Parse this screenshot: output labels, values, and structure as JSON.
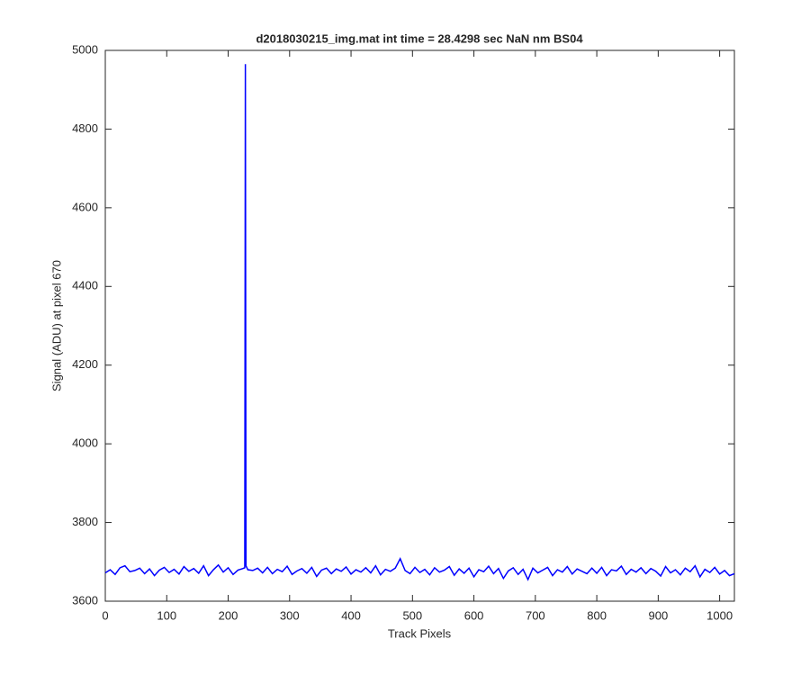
{
  "chart_data": {
    "type": "line",
    "title": "d2018030215_img.mat int time = 28.4298 sec  NaN nm BS04",
    "x_label": "Track Pixels",
    "y_label": "Signal (ADU) at pixel 670",
    "xlim": [
      0,
      1024
    ],
    "xticks": [
      0,
      100,
      200,
      300,
      400,
      500,
      600,
      700,
      800,
      900,
      1000
    ],
    "ylim": [
      3600,
      5000
    ],
    "yticks": [
      3600,
      3800,
      4000,
      4200,
      4400,
      4600,
      4800,
      5000
    ],
    "x": [
      0,
      8,
      16,
      24,
      32,
      40,
      48,
      56,
      64,
      72,
      80,
      88,
      96,
      104,
      112,
      120,
      128,
      136,
      144,
      152,
      160,
      168,
      176,
      184,
      192,
      200,
      208,
      216,
      224,
      227,
      228,
      229,
      232,
      240,
      248,
      256,
      264,
      272,
      280,
      288,
      296,
      304,
      312,
      320,
      328,
      336,
      344,
      352,
      360,
      368,
      376,
      384,
      392,
      400,
      408,
      416,
      424,
      432,
      440,
      448,
      456,
      464,
      472,
      480,
      488,
      496,
      504,
      512,
      520,
      528,
      536,
      544,
      552,
      560,
      568,
      576,
      584,
      592,
      600,
      608,
      616,
      624,
      632,
      640,
      648,
      656,
      664,
      672,
      680,
      688,
      696,
      704,
      712,
      720,
      728,
      736,
      744,
      752,
      760,
      768,
      776,
      784,
      792,
      800,
      808,
      816,
      824,
      832,
      840,
      848,
      856,
      864,
      872,
      880,
      888,
      896,
      904,
      912,
      920,
      928,
      936,
      944,
      952,
      960,
      968,
      976,
      984,
      992,
      1000,
      1008,
      1016,
      1024
    ],
    "series": [
      {
        "color": "#0000ff",
        "values": [
          3672,
          3680,
          3668,
          3685,
          3690,
          3675,
          3678,
          3684,
          3670,
          3682,
          3665,
          3679,
          3686,
          3673,
          3681,
          3669,
          3688,
          3676,
          3683,
          3671,
          3690,
          3665,
          3680,
          3692,
          3674,
          3685,
          3668,
          3679,
          3683,
          3685,
          4965,
          3690,
          3680,
          3678,
          3684,
          3672,
          3686,
          3670,
          3681,
          3675,
          3689,
          3668,
          3677,
          3683,
          3671,
          3686,
          3663,
          3679,
          3684,
          3670,
          3682,
          3676,
          3687,
          3669,
          3680,
          3674,
          3685,
          3672,
          3690,
          3667,
          3681,
          3676,
          3684,
          3708,
          3678,
          3670,
          3686,
          3673,
          3681,
          3667,
          3685,
          3674,
          3679,
          3688,
          3666,
          3682,
          3671,
          3684,
          3662,
          3680,
          3675,
          3689,
          3670,
          3683,
          3658,
          3677,
          3685,
          3668,
          3681,
          3655,
          3684,
          3672,
          3679,
          3686,
          3665,
          3680,
          3674,
          3688,
          3669,
          3682,
          3676,
          3670,
          3684,
          3671,
          3686,
          3665,
          3680,
          3677,
          3689,
          3668,
          3681,
          3674,
          3685,
          3670,
          3683,
          3676,
          3664,
          3688,
          3672,
          3680,
          3667,
          3684,
          3675,
          3690,
          3662,
          3681,
          3673,
          3686,
          3669,
          3678,
          3665,
          3670
        ]
      }
    ]
  }
}
